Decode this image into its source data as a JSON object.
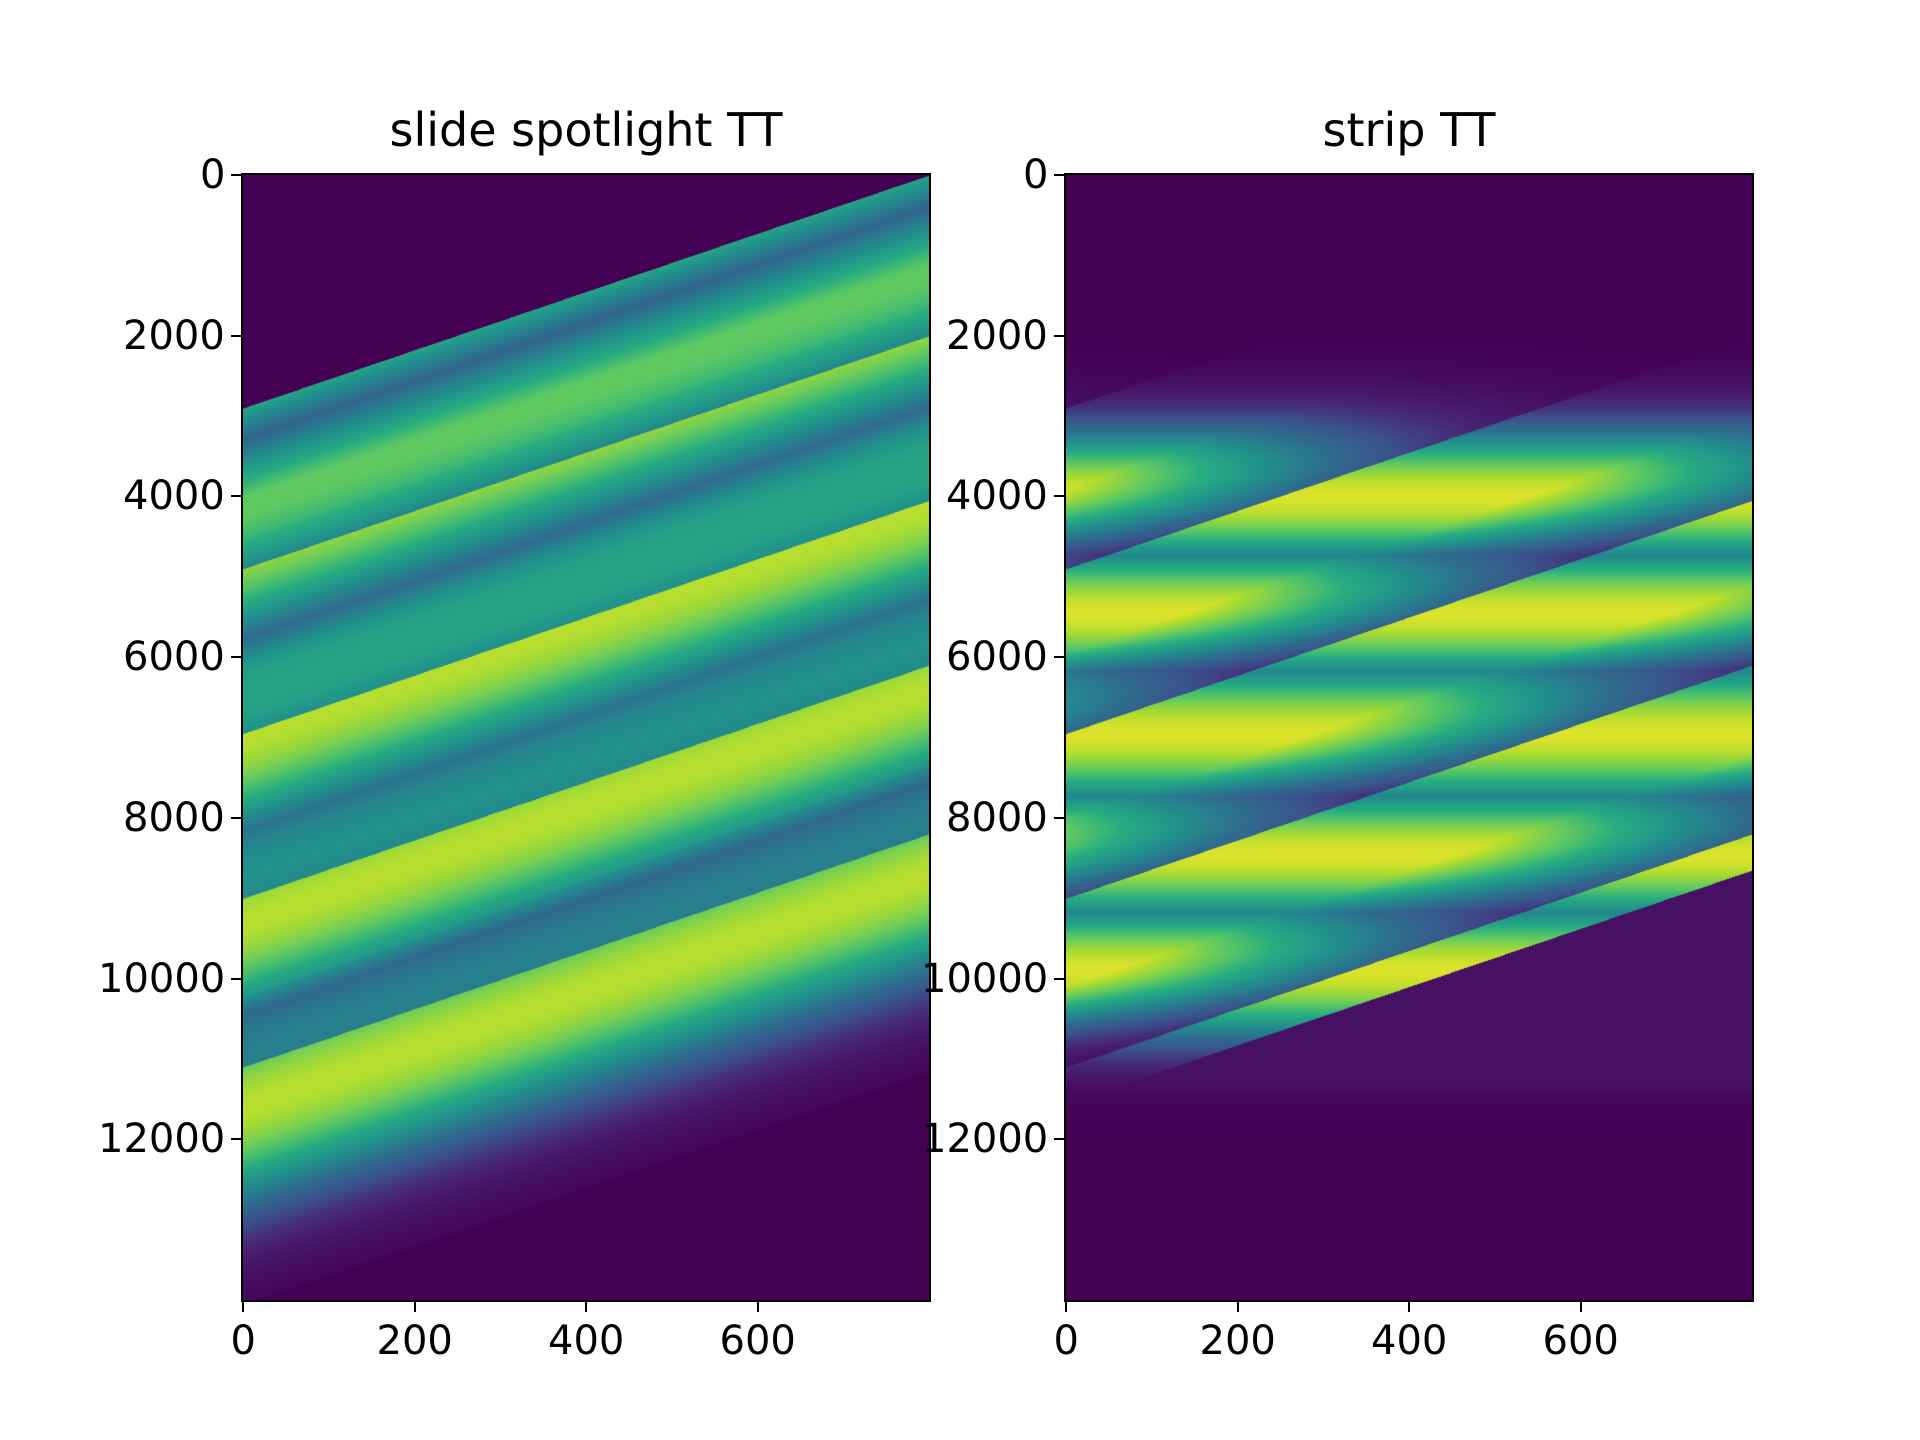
{
  "chart_data": [
    {
      "type": "heatmap",
      "title": "slide spotlight TT",
      "xlabel": "",
      "ylabel": "",
      "xlim": [
        0,
        800
      ],
      "ylim": [
        14000,
        0
      ],
      "xticks": [
        "0",
        "200",
        "400",
        "600"
      ],
      "yticks": [
        "0",
        "2000",
        "4000",
        "6000",
        "8000",
        "10000",
        "12000"
      ],
      "grid": false,
      "colormap": "viridis",
      "ridge_spacing": 3200,
      "ridge_slope": -3.6,
      "left_edge_starts": [
        2900,
        4900,
        6950,
        9000,
        11100
      ],
      "bands": [
        {
          "center": 2200,
          "width": 1300,
          "level": 0.88
        },
        {
          "center": 4550,
          "width": 1500,
          "level": 0.9
        },
        {
          "center": 7000,
          "width": 1500,
          "level": 0.9
        },
        {
          "center": 9300,
          "width": 1500,
          "level": 0.9
        },
        {
          "center": 11600,
          "width": 1500,
          "level": 0.9
        }
      ]
    },
    {
      "type": "heatmap",
      "title": "strip TT",
      "xlabel": "",
      "ylabel": "",
      "xlim": [
        0,
        800
      ],
      "ylim": [
        14000,
        0
      ],
      "xticks": [
        "0",
        "200",
        "400",
        "600"
      ],
      "yticks": [
        "0",
        "2000",
        "4000",
        "6000",
        "8000",
        "10000",
        "12000"
      ],
      "grid": false,
      "colormap": "viridis",
      "left_edge_starts": [
        2900,
        4900,
        6950,
        9000,
        11100
      ],
      "bands": [
        {
          "center": 4000,
          "width": 600,
          "level": 0.95
        },
        {
          "center": 5450,
          "width": 600,
          "level": 0.95
        },
        {
          "center": 6950,
          "width": 650,
          "level": 0.95
        },
        {
          "center": 8450,
          "width": 600,
          "level": 0.95
        },
        {
          "center": 9900,
          "width": 600,
          "level": 0.95
        }
      ]
    }
  ]
}
